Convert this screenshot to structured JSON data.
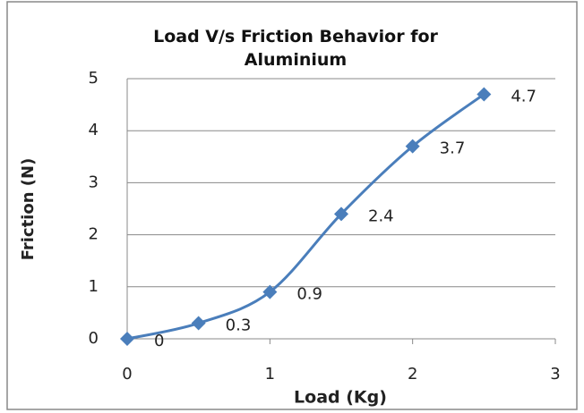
{
  "chart_data": {
    "type": "line",
    "title": "Load V/s Friction Behavior for Aluminium",
    "x_label": "Load (Kg)",
    "y_label": "Friction (N)",
    "x": [
      0,
      0.5,
      1,
      1.5,
      2,
      2.5
    ],
    "series": [
      {
        "name": "Friction",
        "color": "#4a7ebb",
        "values": [
          0,
          0.3,
          0.9,
          2.4,
          3.7,
          4.7
        ]
      }
    ],
    "xlim": [
      0,
      3
    ],
    "xticks": [
      0,
      1,
      2,
      3
    ],
    "ylim": [
      0,
      5
    ],
    "yticks": [
      0,
      1,
      2,
      3,
      4,
      5
    ],
    "grid": true
  }
}
